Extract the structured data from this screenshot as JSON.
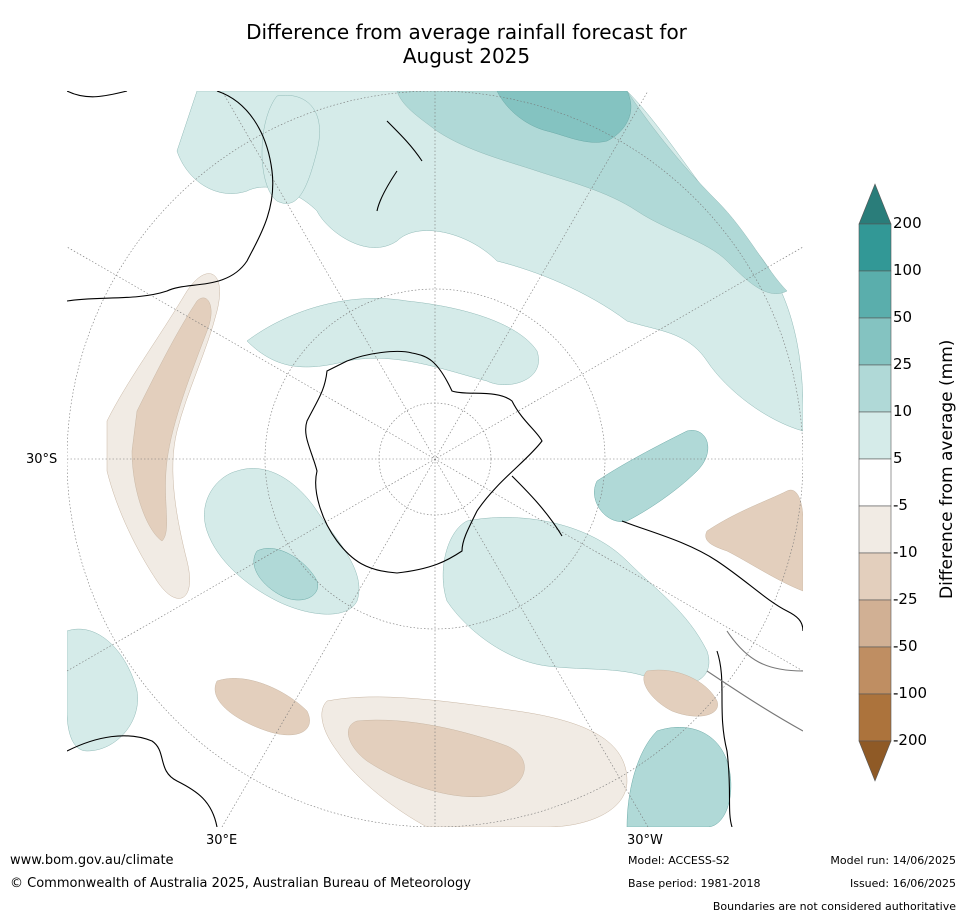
{
  "title": {
    "line1": "Difference from average rainfall forecast for",
    "line2": "August 2025"
  },
  "map": {
    "projection": "south-polar-stereographic",
    "latitude_label": "30°S",
    "longitude_labels": [
      "30°E",
      "30°W"
    ]
  },
  "colorbar": {
    "title": "Difference from average (mm)",
    "ticks": [
      "200",
      "100",
      "50",
      "25",
      "10",
      "5",
      "-5",
      "-10",
      "-25",
      "-50",
      "-100",
      "-200"
    ],
    "colors": {
      "gt200": "#2a7d7a",
      "c100_200": "#329896",
      "c50_100": "#5aaeac",
      "c25_50": "#84c3c1",
      "c10_25": "#b0d9d7",
      "c5_10": "#d5ebe9",
      "c_5_5": "#ffffff",
      "c_10_5": "#f1ebe4",
      "c_25_10": "#e3cfbd",
      "c_50_25": "#d1b094",
      "c_100_50": "#bf8e62",
      "c_200_100": "#ac733c",
      "lt_200": "#8f5a26"
    }
  },
  "footer": {
    "website": "www.bom.gov.au/climate",
    "copyright": "© Commonwealth of Australia 2025, Australian Bureau of Meteorology",
    "model": "Model: ACCESS-S2",
    "base_period": "Base period: 1981-2018",
    "model_run": "Model run: 14/06/2025",
    "issued": "Issued: 16/06/2025",
    "disclaimer": "Boundaries are not considered authoritative"
  }
}
